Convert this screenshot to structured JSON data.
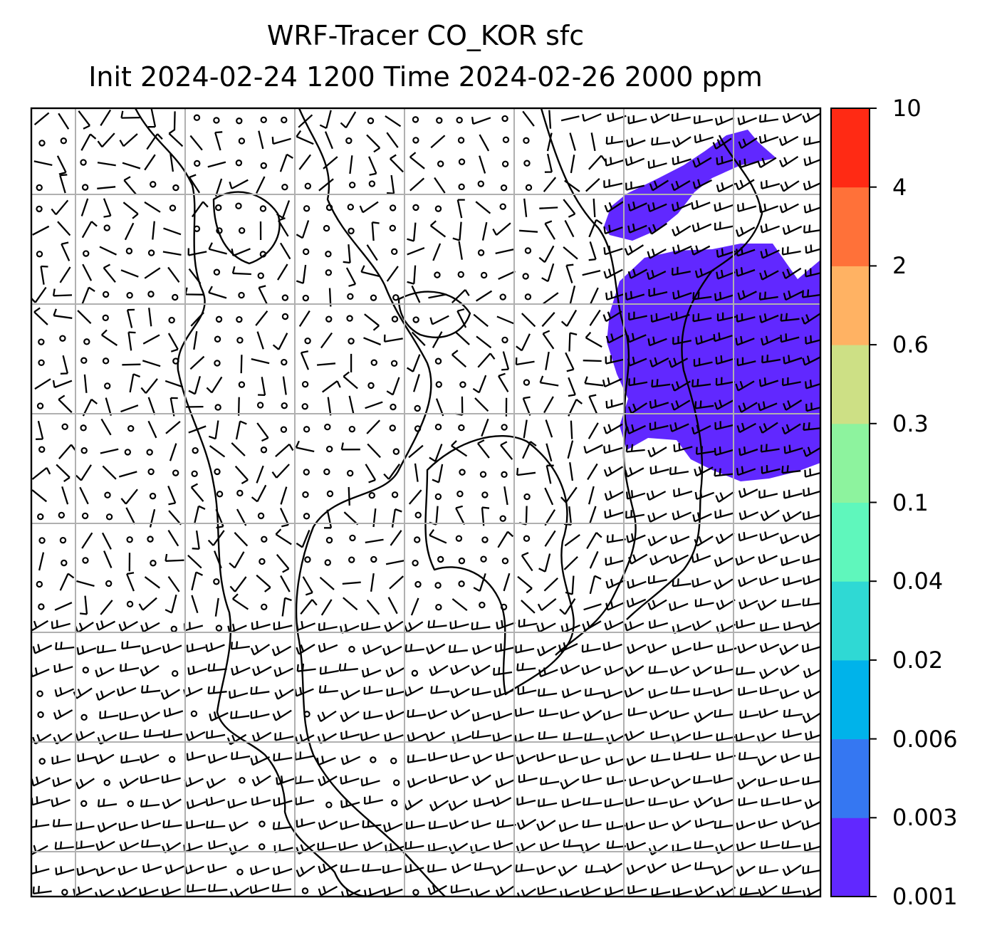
{
  "title": {
    "line1": "WRF-Tracer CO_KOR sfc",
    "line2": "Init 2024-02-24 1200 Time 2024-02-26 2000 ppm"
  },
  "colorbar": {
    "levels": [
      "0.001",
      "0.003",
      "0.006",
      "0.02",
      "0.04",
      "0.1",
      "0.3",
      "0.6",
      "2",
      "4",
      "10"
    ],
    "colors": [
      "#6128ff",
      "#3577f2",
      "#00b3ea",
      "#2fd9d4",
      "#5ff7bc",
      "#8df39e",
      "#cde085",
      "#ffb263",
      "#ff7139",
      "#ff2a14"
    ]
  },
  "plume_color": "#6128ff",
  "map": {
    "gridline_color": "#b0b0b0",
    "coastline_color": "#000000",
    "wind_symbols": "wind-barbs"
  }
}
